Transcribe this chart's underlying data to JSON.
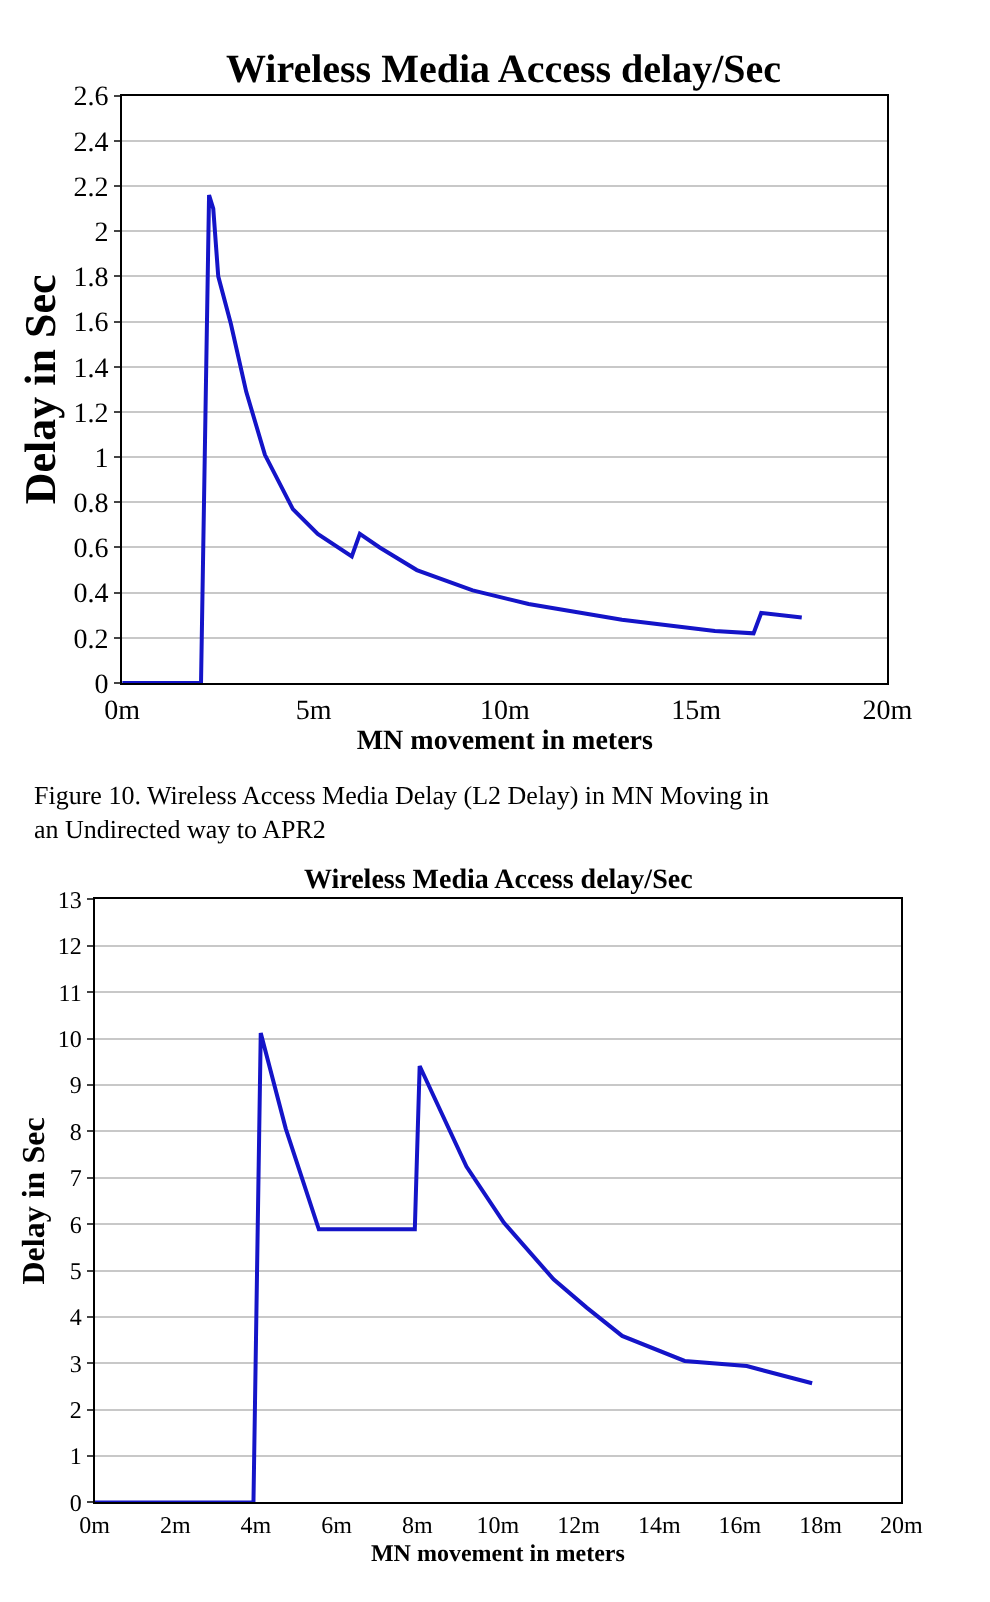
{
  "chart_data": [
    {
      "type": "line",
      "title": "Wireless Media Access delay/Sec",
      "xlabel": "MN movement in meters",
      "ylabel": "Delay in Sec",
      "x": [
        0,
        2.06,
        2.27,
        2.38,
        2.51,
        2.84,
        3.24,
        3.73,
        4.46,
        5.11,
        6.0,
        6.21,
        6.73,
        7.7,
        9.16,
        10.62,
        13.06,
        15.49,
        16.5,
        16.7,
        17.76
      ],
      "series": [
        {
          "color": "#1414c8",
          "values": [
            0,
            0,
            2.16,
            2.1,
            1.8,
            1.59,
            1.29,
            1.01,
            0.77,
            0.66,
            0.56,
            0.66,
            0.6,
            0.5,
            0.41,
            0.35,
            0.28,
            0.23,
            0.22,
            0.31,
            0.29
          ]
        }
      ],
      "xlim": [
        0,
        20
      ],
      "xticks": [
        {
          "value": 0,
          "label": "0m"
        },
        {
          "value": 5,
          "label": "5m"
        },
        {
          "value": 10,
          "label": "10m"
        },
        {
          "value": 15,
          "label": "15m"
        },
        {
          "value": 20,
          "label": "20m"
        }
      ],
      "ylim": [
        0,
        2.6
      ],
      "yticks": [
        0,
        0.2,
        0.4,
        0.6,
        0.8,
        1,
        1.2,
        1.4,
        1.6,
        1.8,
        2,
        2.2,
        2.4,
        2.6
      ],
      "grid": "y",
      "marker": "none",
      "line_style": "solid",
      "annotations": [
        "Figure 10. Wireless Access Media Delay (L2 Delay) in MN Moving in an Undirected way to APR2"
      ]
    },
    {
      "type": "line",
      "title": "Wireless Media Access delay/Sec",
      "xlabel": "MN movement in meters",
      "ylabel": "Delay in Sec",
      "x": [
        0,
        3.94,
        4.12,
        4.74,
        5.56,
        7.94,
        8.06,
        9.22,
        10.15,
        11.38,
        12.2,
        13.08,
        14.63,
        16.17,
        17.79
      ],
      "series": [
        {
          "color": "#1414c8",
          "values": [
            0,
            0,
            10.12,
            8.06,
            5.89,
            5.89,
            9.41,
            7.24,
            6.03,
            4.81,
            4.2,
            3.59,
            3.05,
            2.94,
            2.57
          ]
        }
      ],
      "xlim": [
        0,
        20
      ],
      "xticks": [
        {
          "value": 0,
          "label": "0m"
        },
        {
          "value": 2,
          "label": "2m"
        },
        {
          "value": 4,
          "label": "4m"
        },
        {
          "value": 6,
          "label": "6m"
        },
        {
          "value": 8,
          "label": "8m"
        },
        {
          "value": 10,
          "label": "10m"
        },
        {
          "value": 12,
          "label": "12m"
        },
        {
          "value": 14,
          "label": "14m"
        },
        {
          "value": 16,
          "label": "16m"
        },
        {
          "value": 18,
          "label": "18m"
        },
        {
          "value": 20,
          "label": "20m"
        }
      ],
      "ylim": [
        0,
        13
      ],
      "yticks": [
        0,
        1,
        2,
        3,
        4,
        5,
        6,
        7,
        8,
        9,
        10,
        11,
        12,
        13
      ],
      "grid": "y",
      "marker": "none",
      "line_style": "solid"
    }
  ]
}
